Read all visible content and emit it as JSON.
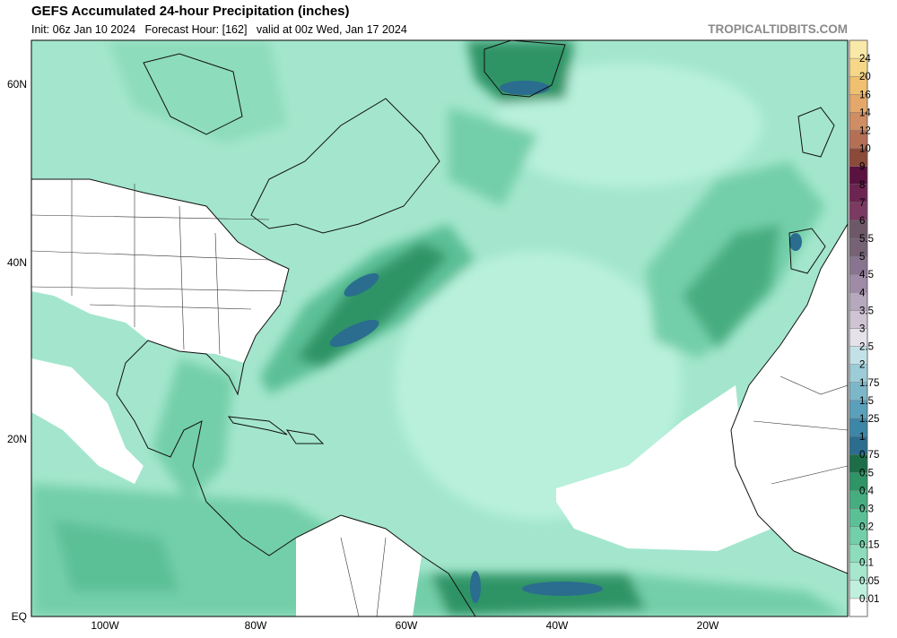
{
  "header": {
    "title": "GEFS Accumulated 24-hour Precipitation (inches)",
    "subtitle": "Init: 06z Jan 10 2024   Forecast Hour: [162]   valid at 00z Wed, Jan 17 2024",
    "credit": "TROPICALTIDBITS.COM"
  },
  "colorbar": {
    "labels": [
      "0.01",
      "0.05",
      "0.1",
      "0.15",
      "0.2",
      "0.3",
      "0.4",
      "0.5",
      "0.75",
      "1",
      "1.25",
      "1.5",
      "1.75",
      "2",
      "2.5",
      "3",
      "3.5",
      "4",
      "4.5",
      "5",
      "5.5",
      "6",
      "7",
      "8",
      "9",
      "10",
      "12",
      "14",
      "16",
      "20",
      "24"
    ],
    "colors": [
      "#ffffff",
      "#bff0dd",
      "#a6e7cd",
      "#8ddcbc",
      "#73cfa9",
      "#5cc096",
      "#46ad80",
      "#2f9466",
      "#1d6d48",
      "#2a6d8f",
      "#3c87a8",
      "#5aa0bb",
      "#7bb7c9",
      "#9ccdd7",
      "#c3e2e8",
      "#e6e2ea",
      "#cfc4d3",
      "#b6a8bd",
      "#9f8ba6",
      "#89748f",
      "#766274",
      "#6d5868",
      "#7a3a62",
      "#6c2450",
      "#5a1240",
      "#8c4a3a",
      "#b56f55",
      "#cf8d63",
      "#e3a86a",
      "#efc06f",
      "#f5d787",
      "#f9e9a8"
    ]
  },
  "axes": {
    "lat_labels": [
      "60N",
      "40N",
      "20N",
      "EQ"
    ],
    "lon_labels": [
      "100W",
      "80W",
      "60W",
      "40W",
      "20W"
    ]
  }
}
